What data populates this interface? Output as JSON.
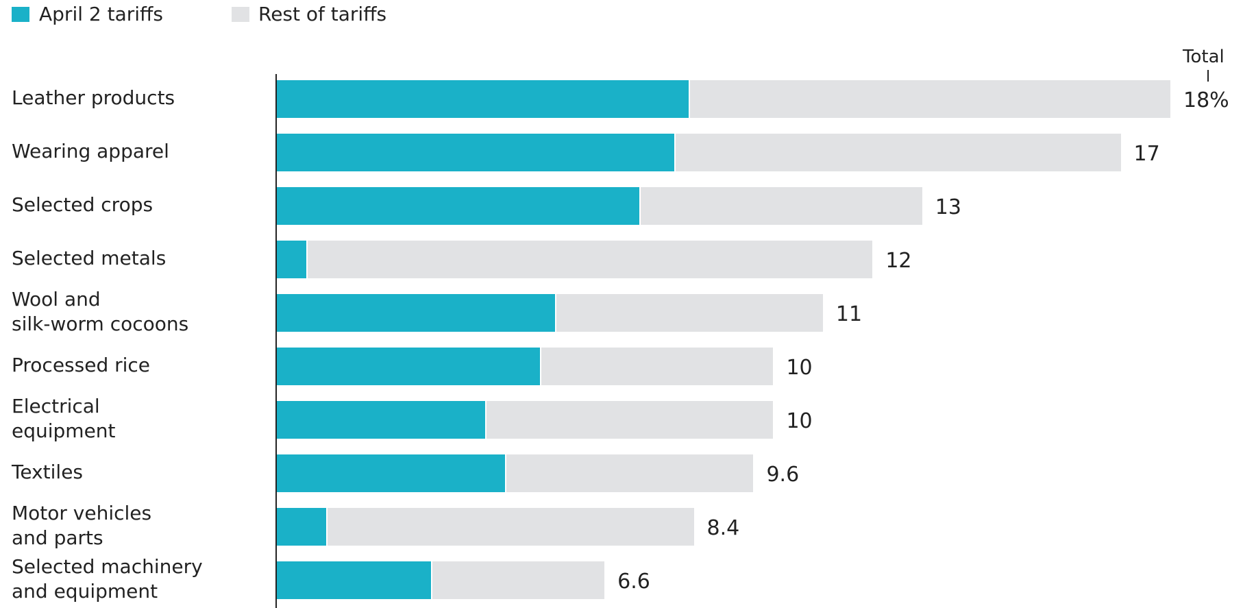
{
  "chart_data": {
    "type": "bar",
    "orientation": "horizontal",
    "stacked": true,
    "legend_position": "top-left",
    "grid": false,
    "total_label": "Total",
    "colors": {
      "april2": "#1ab1c8",
      "rest": "#e1e2e4"
    },
    "categories": [
      [
        "Leather products"
      ],
      [
        "Wearing apparel"
      ],
      [
        "Selected crops"
      ],
      [
        "Selected metals"
      ],
      [
        "Wool and",
        "silk-worm cocoons"
      ],
      [
        "Processed rice"
      ],
      [
        "Electrical",
        "equipment"
      ],
      [
        "Textiles"
      ],
      [
        "Motor vehicles",
        "and parts"
      ],
      [
        "Selected machinery",
        "and equipment"
      ]
    ],
    "series": [
      {
        "name": "April 2 tariffs",
        "values": [
          8.3,
          8.0,
          7.3,
          0.6,
          5.6,
          5.3,
          4.2,
          4.6,
          1.0,
          3.1
        ]
      },
      {
        "name": "Rest of tariffs",
        "values": [
          9.7,
          9.0,
          5.7,
          11.4,
          5.4,
          4.7,
          5.8,
          5.0,
          7.4,
          3.5
        ]
      }
    ],
    "totals": [
      18,
      17,
      13,
      12,
      11,
      10,
      10,
      9.6,
      8.4,
      6.6
    ],
    "value_labels": [
      "18%",
      "17",
      "13",
      "12",
      "11",
      "10",
      "10",
      "9.6",
      "8.4",
      "6.6"
    ],
    "xlim": [
      0,
      18
    ]
  }
}
